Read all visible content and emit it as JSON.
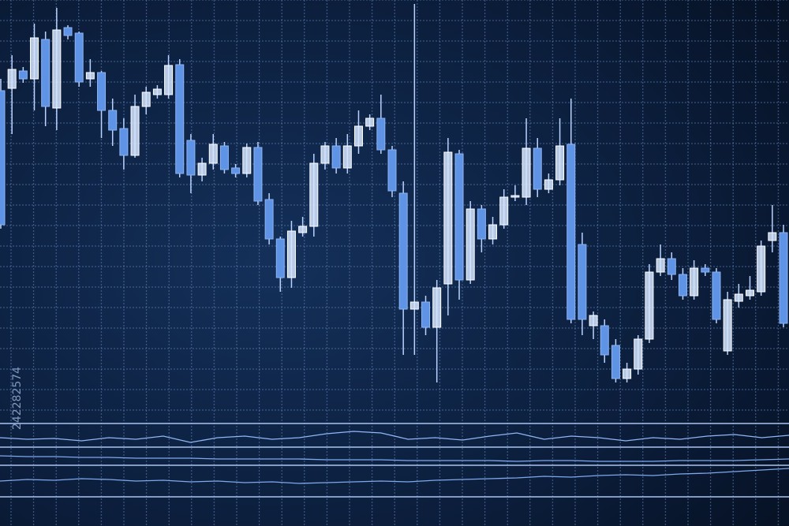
{
  "chart_data": [
    {
      "type": "candlestick",
      "ylim": [
        0,
        520
      ],
      "yticks": [
        0,
        26,
        52,
        78,
        104,
        130,
        156,
        182,
        208,
        234,
        260,
        286,
        312,
        338,
        364,
        390,
        416,
        442,
        468,
        494,
        520
      ],
      "grid": true,
      "up_color": "#d6e6ff",
      "down_color": "#5f93e6",
      "wick_color": "#b9d2ff",
      "open": [
        405,
        408,
        430,
        420,
        470,
        383,
        485,
        478,
        420,
        428,
        380,
        357,
        323,
        385,
        400,
        400,
        438,
        342,
        298,
        313,
        335,
        307,
        300,
        333,
        267,
        217,
        168,
        225,
        233,
        313,
        335,
        307,
        335,
        360,
        370,
        330,
        275,
        128,
        137,
        105,
        160,
        325,
        165,
        255,
        217,
        235,
        270,
        270,
        332,
        280,
        292,
        337,
        210,
        107,
        107,
        82,
        40,
        52,
        90,
        175,
        192,
        172,
        145,
        180,
        175,
        75,
        138,
        145,
        150,
        215,
        225
      ],
      "high": [
        420,
        450,
        435,
        490,
        480,
        510,
        488,
        480,
        445,
        430,
        395,
        370,
        400,
        410,
        412,
        450,
        445,
        350,
        320,
        350,
        340,
        312,
        338,
        340,
        275,
        220,
        240,
        245,
        325,
        340,
        345,
        350,
        380,
        375,
        400,
        335,
        290,
        515,
        145,
        165,
        345,
        330,
        265,
        260,
        245,
        280,
        285,
        370,
        345,
        300,
        370,
        395,
        225,
        125,
        115,
        90,
        60,
        95,
        185,
        210,
        200,
        180,
        190,
        185,
        180,
        150,
        160,
        170,
        215,
        260,
        235
      ],
      "low": [
        230,
        350,
        415,
        380,
        360,
        355,
        470,
        410,
        410,
        345,
        335,
        305,
        320,
        375,
        395,
        395,
        295,
        275,
        290,
        305,
        300,
        295,
        295,
        260,
        210,
        150,
        155,
        220,
        220,
        305,
        300,
        300,
        325,
        355,
        325,
        270,
        70,
        70,
        95,
        35,
        120,
        140,
        160,
        200,
        210,
        230,
        265,
        260,
        270,
        275,
        285,
        110,
        95,
        90,
        60,
        35,
        35,
        45,
        85,
        170,
        165,
        140,
        140,
        170,
        110,
        70,
        130,
        140,
        145,
        200,
        105
      ],
      "close": [
        235,
        432,
        420,
        472,
        385,
        482,
        475,
        416,
        428,
        380,
        355,
        323,
        385,
        403,
        407,
        437,
        300,
        298,
        313,
        337,
        305,
        300,
        333,
        265,
        217,
        168,
        227,
        233,
        313,
        335,
        307,
        335,
        360,
        370,
        330,
        278,
        128,
        137,
        105,
        155,
        327,
        165,
        255,
        217,
        235,
        270,
        272,
        332,
        280,
        292,
        335,
        115,
        115,
        120,
        70,
        40,
        52,
        90,
        175,
        192,
        172,
        145,
        180,
        175,
        115,
        140,
        147,
        152,
        208,
        225,
        110
      ]
    },
    {
      "type": "line",
      "ylim": [
        0,
        30
      ],
      "color": "#8fb6f5",
      "values": [
        12,
        10,
        11,
        8,
        12,
        10,
        14,
        6,
        12,
        14,
        10,
        12,
        17,
        20,
        18,
        10,
        12,
        9,
        14,
        18,
        10,
        14,
        12,
        8,
        12,
        10,
        14,
        16,
        12,
        15
      ]
    },
    {
      "type": "line",
      "ylim": [
        0,
        23
      ],
      "color": "#7ea8ec",
      "values": [
        12,
        11,
        11,
        10,
        10,
        9,
        9,
        9,
        8,
        8,
        8,
        8,
        7,
        7,
        7,
        6,
        6,
        6,
        6,
        5,
        6,
        6,
        5,
        5,
        5,
        6,
        6,
        6,
        7,
        8
      ]
    },
    {
      "type": "line",
      "ylim": [
        0,
        40
      ],
      "color": "#7ea8ec",
      "values": [
        20,
        22,
        21,
        23,
        22,
        20,
        21,
        19,
        20,
        18,
        19,
        17,
        18,
        19,
        20,
        19,
        21,
        22,
        23,
        24,
        26,
        25,
        27,
        28,
        27,
        29,
        30,
        32,
        34,
        36
      ]
    }
  ],
  "watermark": "242282574"
}
